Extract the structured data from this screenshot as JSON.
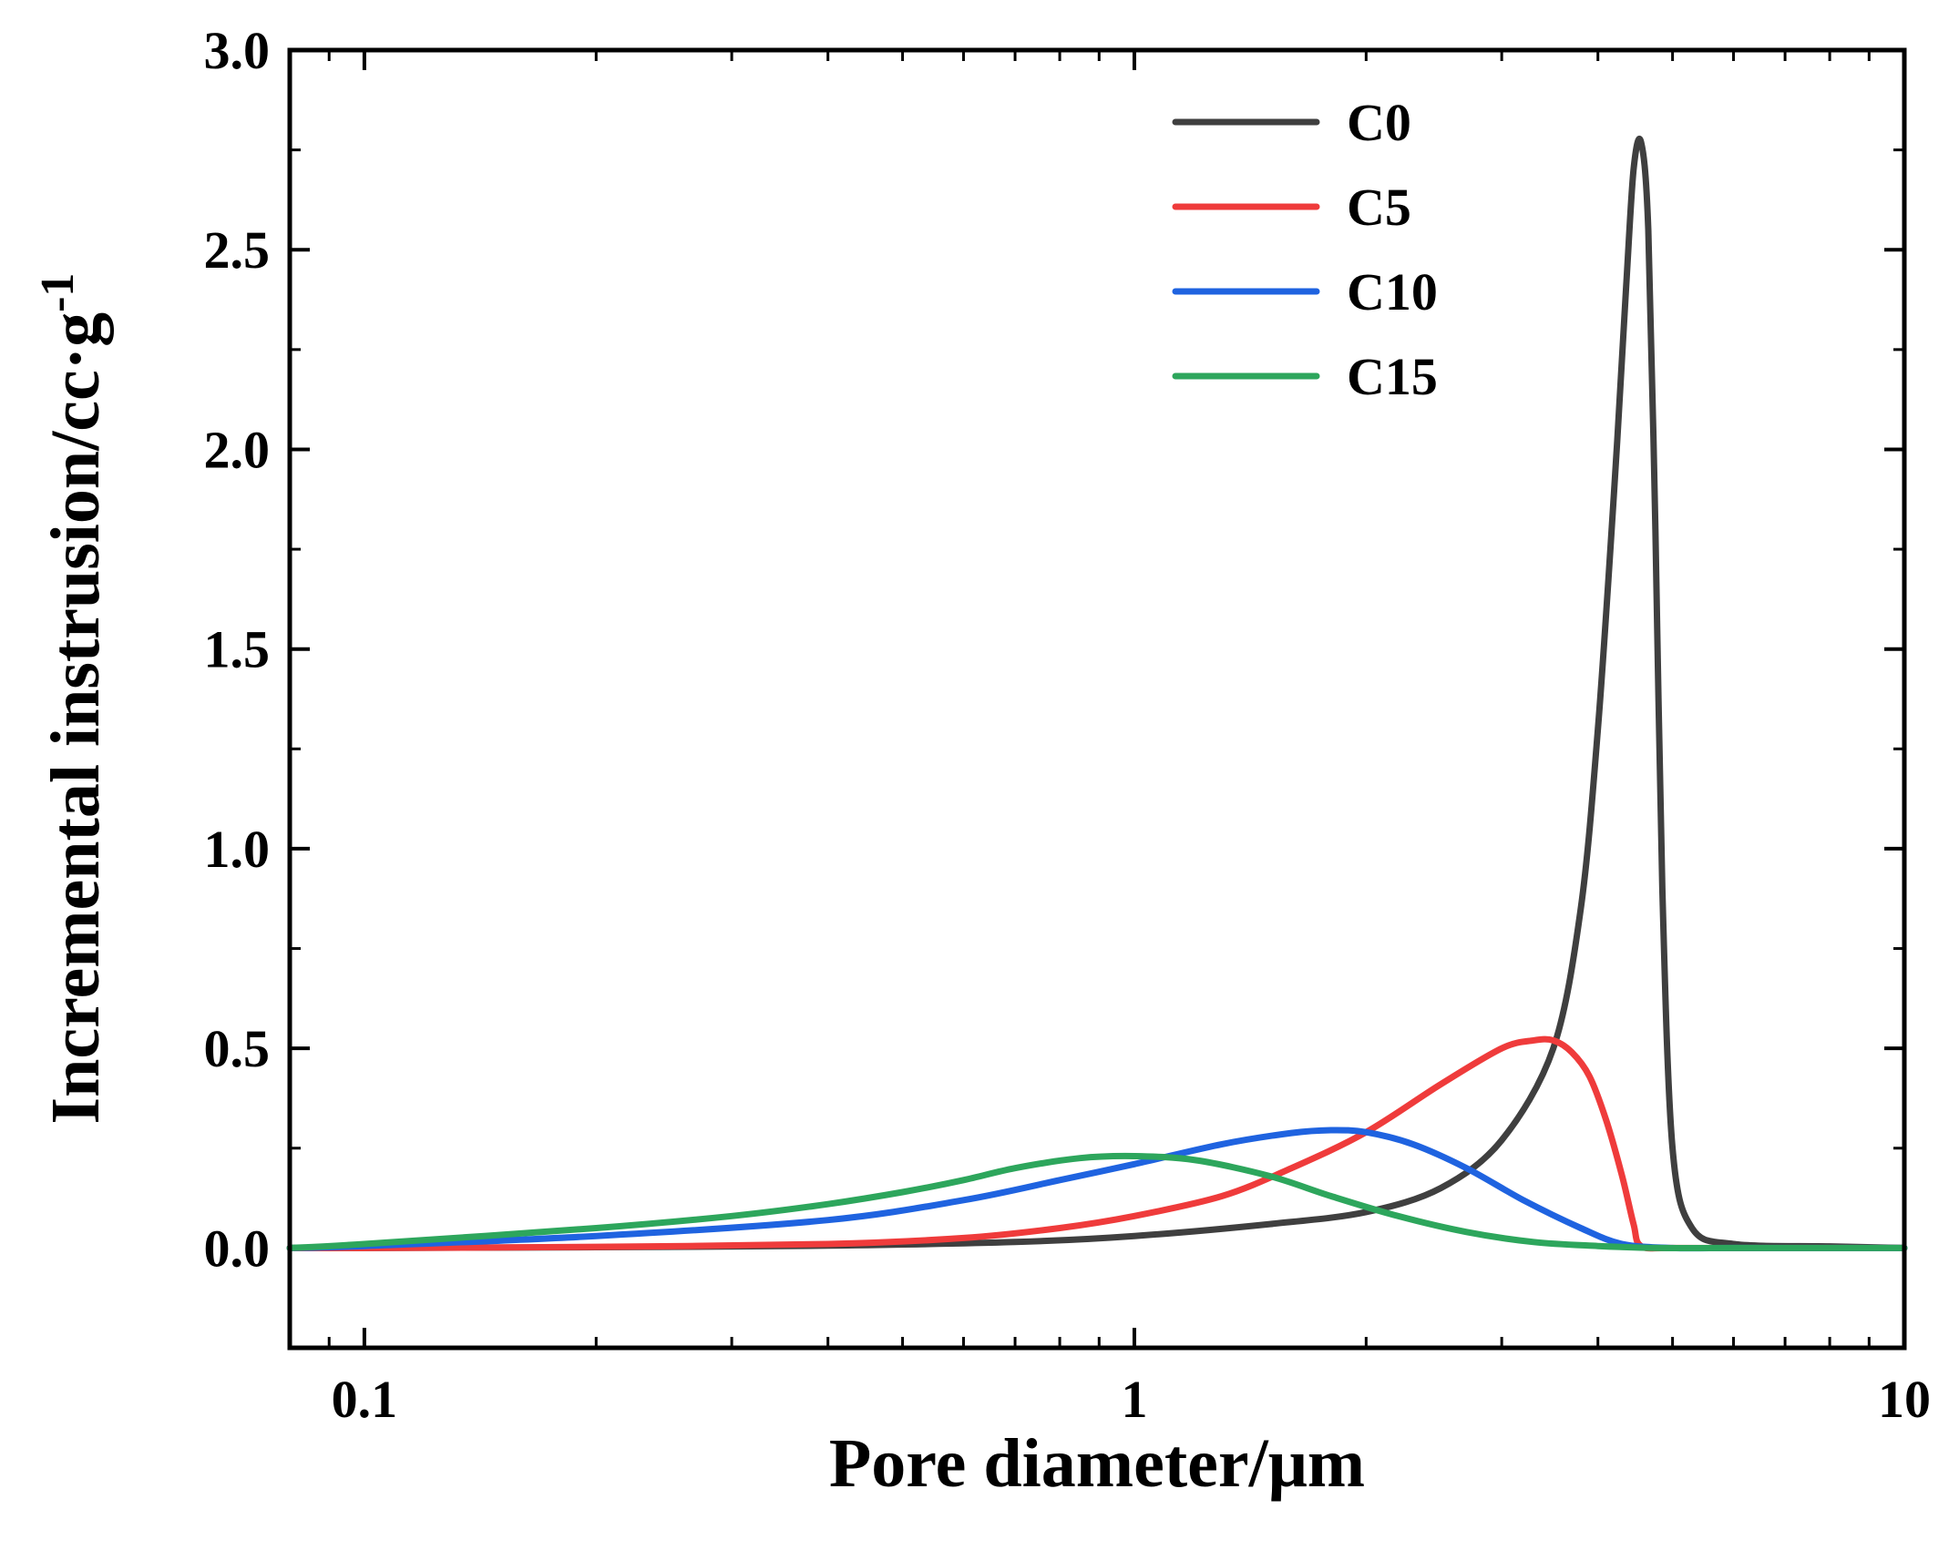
{
  "chart_data": {
    "type": "line",
    "title": "",
    "xlabel": "Pore diameter/μm",
    "ylabel": "Incremental instrusion/cc·g",
    "ylabel_superscript": "-1",
    "xscale": "log",
    "xlim": [
      0.08,
      10
    ],
    "ylim": [
      -0.25,
      3.0
    ],
    "xticks": [
      0.1,
      1,
      10
    ],
    "xtick_labels": [
      "0.1",
      "1",
      "10"
    ],
    "yticks": [
      0.0,
      0.5,
      1.0,
      1.5,
      2.0,
      2.5,
      3.0
    ],
    "ytick_labels": [
      "0.0",
      "0.5",
      "1.0",
      "1.5",
      "2.0",
      "2.5",
      "3.0"
    ],
    "legend_position": "top-center-right",
    "grid": false,
    "series": [
      {
        "name": "C0",
        "color": "#3f3f3f",
        "x": [
          0.08,
          0.1,
          0.2,
          0.4,
          0.7,
          1.0,
          1.5,
          2.0,
          2.5,
          3.0,
          3.5,
          3.8,
          4.0,
          4.2,
          4.35,
          4.45,
          4.55,
          4.65,
          4.75,
          4.85,
          5.0,
          5.3,
          6.0,
          8.0,
          10.0
        ],
        "y": [
          0.0,
          0.0,
          0.002,
          0.006,
          0.015,
          0.03,
          0.06,
          0.09,
          0.15,
          0.27,
          0.5,
          0.85,
          1.3,
          1.9,
          2.4,
          2.7,
          2.77,
          2.55,
          1.8,
          0.9,
          0.25,
          0.05,
          0.01,
          0.004,
          0.0
        ]
      },
      {
        "name": "C5",
        "color": "#ef3b3b",
        "x": [
          0.08,
          0.1,
          0.2,
          0.4,
          0.6,
          0.8,
          1.0,
          1.3,
          1.6,
          2.0,
          2.5,
          3.0,
          3.3,
          3.5,
          3.7,
          3.9,
          4.1,
          4.3,
          4.45,
          4.55,
          5.0,
          7.0,
          10.0
        ],
        "y": [
          0.0,
          0.0,
          0.003,
          0.01,
          0.025,
          0.05,
          0.08,
          0.13,
          0.2,
          0.29,
          0.41,
          0.5,
          0.52,
          0.52,
          0.49,
          0.43,
          0.32,
          0.18,
          0.06,
          0.005,
          0.0,
          0.0,
          0.0
        ]
      },
      {
        "name": "C10",
        "color": "#1f63e0",
        "x": [
          0.08,
          0.1,
          0.2,
          0.4,
          0.6,
          0.8,
          1.0,
          1.3,
          1.6,
          1.8,
          2.0,
          2.3,
          2.7,
          3.2,
          3.8,
          4.3,
          5.0,
          6.0,
          10.0
        ],
        "y": [
          0.0,
          0.005,
          0.03,
          0.07,
          0.12,
          0.17,
          0.21,
          0.26,
          0.288,
          0.295,
          0.29,
          0.26,
          0.2,
          0.12,
          0.05,
          0.01,
          0.0,
          0.0,
          0.0
        ]
      },
      {
        "name": "C15",
        "color": "#2da65c",
        "x": [
          0.08,
          0.1,
          0.2,
          0.3,
          0.4,
          0.5,
          0.6,
          0.7,
          0.85,
          1.0,
          1.2,
          1.5,
          1.8,
          2.2,
          2.7,
          3.3,
          4.0,
          4.8,
          6.0,
          10.0
        ],
        "y": [
          0.0,
          0.01,
          0.05,
          0.08,
          0.11,
          0.14,
          0.17,
          0.2,
          0.225,
          0.23,
          0.22,
          0.18,
          0.13,
          0.08,
          0.04,
          0.015,
          0.005,
          0.0,
          0.0,
          0.0
        ]
      }
    ]
  }
}
